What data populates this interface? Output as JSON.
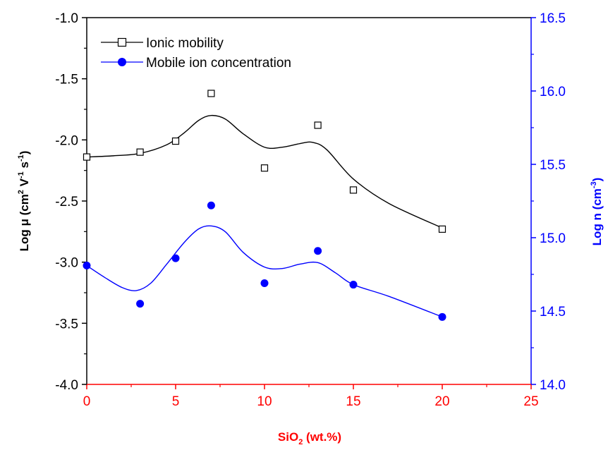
{
  "chart_data": {
    "type": "scatter",
    "title": "",
    "x_axis": {
      "label_main": "SiO",
      "label_sub": "2",
      "label_rest": " (wt.%)",
      "range": [
        0,
        25
      ],
      "ticks": [
        "0",
        "5",
        "10",
        "15",
        "20",
        "25"
      ],
      "color": "#ff0000"
    },
    "y_axis_left": {
      "label_text": "Log μ (cm",
      "sup1": "2",
      "mid": " V",
      "sup2": "-1",
      "mid2": " s",
      "sup3": "-1",
      "end": ")",
      "range": [
        -4.0,
        -1.0
      ],
      "ticks": [
        "-4.0",
        "-3.5",
        "-3.0",
        "-2.5",
        "-2.0",
        "-1.5",
        "-1.0"
      ],
      "color": "#000000"
    },
    "y_axis_right": {
      "label_text": "Log n (cm",
      "sup1": "-3",
      "end": ")",
      "range": [
        14.0,
        16.5
      ],
      "ticks": [
        "14.0",
        "14.5",
        "15.0",
        "15.5",
        "16.0",
        "16.5"
      ],
      "color": "#0000ff"
    },
    "legend": {
      "position": "top-left"
    },
    "series": [
      {
        "name": "Ionic mobility",
        "axis": "left",
        "marker": "open-square",
        "color": "#000000",
        "x": [
          0,
          3,
          5,
          7,
          10,
          13,
          15,
          20
        ],
        "y": [
          -2.14,
          -2.1,
          -2.01,
          -1.62,
          -2.23,
          -1.88,
          -2.41,
          -2.73
        ],
        "fit": [
          [
            0,
            -2.14
          ],
          [
            1.5,
            -2.13
          ],
          [
            3,
            -2.11
          ],
          [
            4.5,
            -2.04
          ],
          [
            5.5,
            -1.94
          ],
          [
            6.3,
            -1.84
          ],
          [
            7,
            -1.8
          ],
          [
            7.8,
            -1.83
          ],
          [
            8.8,
            -1.95
          ],
          [
            10,
            -2.06
          ],
          [
            11,
            -2.06
          ],
          [
            12,
            -2.03
          ],
          [
            12.7,
            -2.02
          ],
          [
            13.5,
            -2.08
          ],
          [
            15,
            -2.32
          ],
          [
            17,
            -2.52
          ],
          [
            20,
            -2.72
          ]
        ]
      },
      {
        "name": "Mobile ion concentration",
        "axis": "right",
        "marker": "filled-circle",
        "color": "#0000ff",
        "x": [
          0,
          3,
          5,
          7,
          10,
          13,
          15,
          20
        ],
        "y": [
          14.81,
          14.55,
          14.86,
          15.22,
          14.69,
          14.91,
          14.68,
          14.46
        ],
        "fit": [
          [
            0,
            14.81
          ],
          [
            1,
            14.73
          ],
          [
            2,
            14.66
          ],
          [
            2.8,
            14.64
          ],
          [
            3.6,
            14.69
          ],
          [
            4.5,
            14.82
          ],
          [
            5.5,
            14.97
          ],
          [
            6.3,
            15.06
          ],
          [
            7,
            15.08
          ],
          [
            7.8,
            15.04
          ],
          [
            8.8,
            14.9
          ],
          [
            10,
            14.8
          ],
          [
            11,
            14.79
          ],
          [
            12,
            14.82
          ],
          [
            13,
            14.83
          ],
          [
            14,
            14.76
          ],
          [
            15,
            14.68
          ],
          [
            17,
            14.6
          ],
          [
            20,
            14.46
          ]
        ]
      }
    ]
  }
}
